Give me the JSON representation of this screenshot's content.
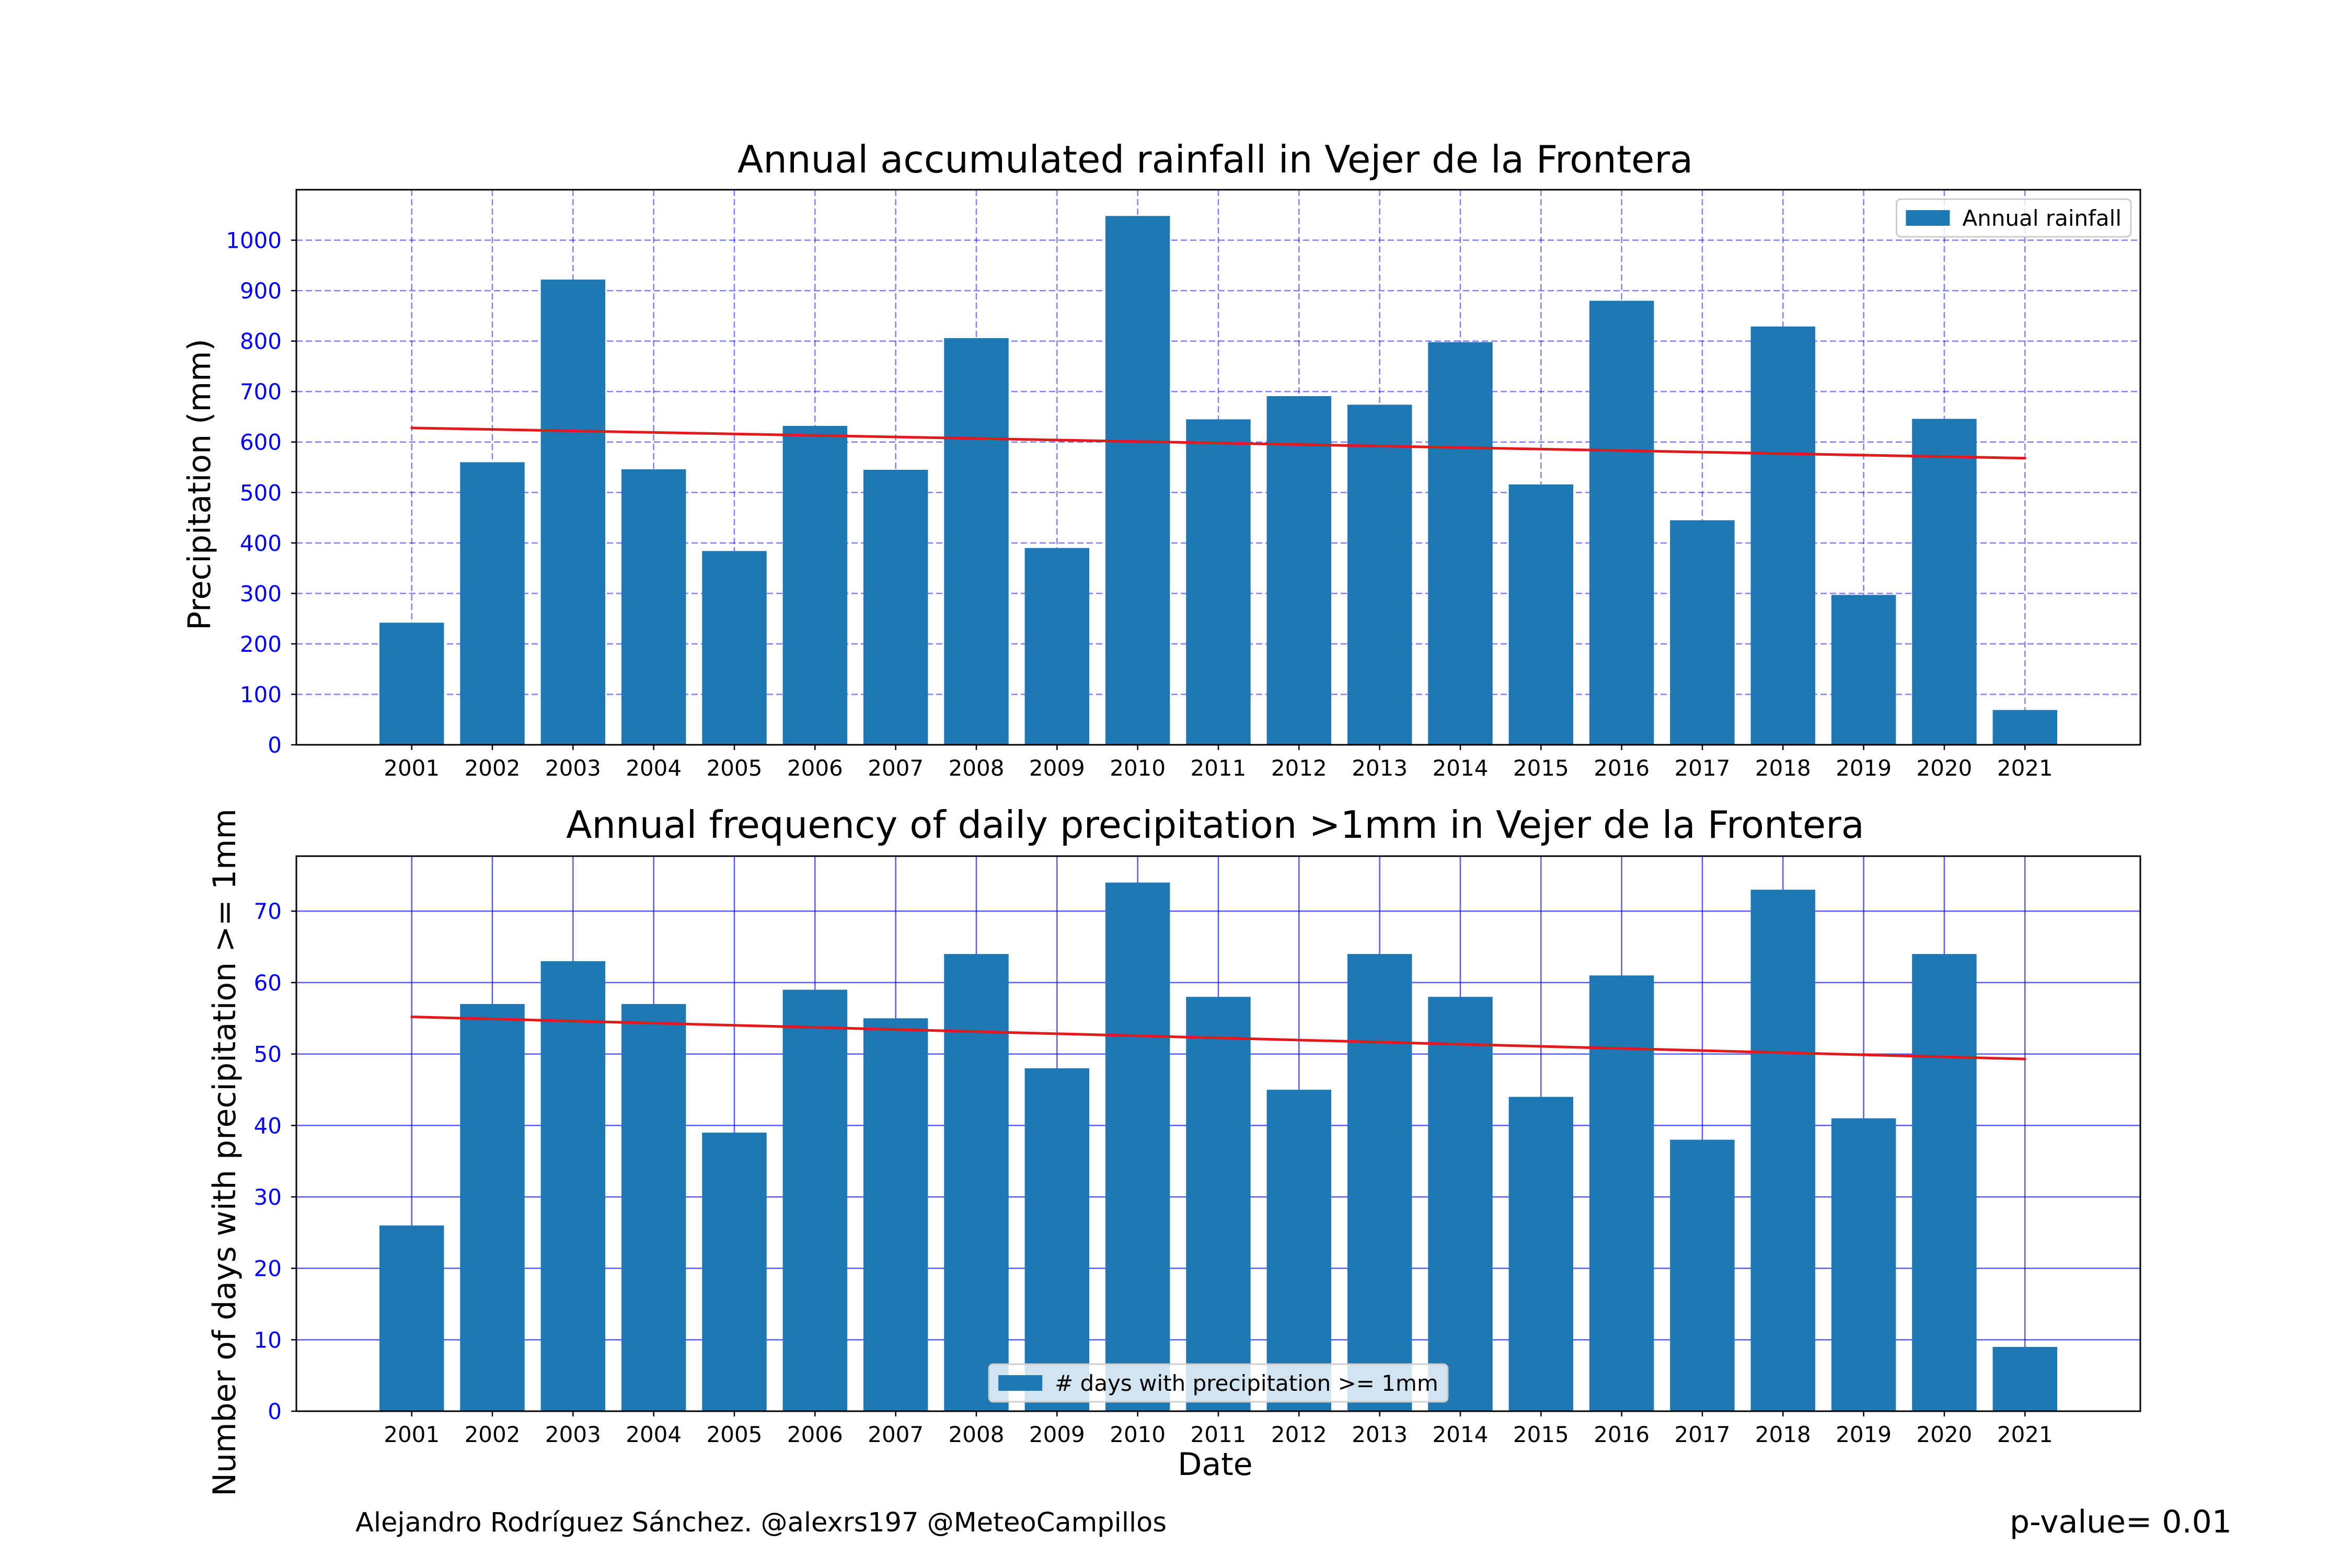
{
  "footer": {
    "credit": "Alejandro Rodríguez Sánchez. @alexrs197 @MeteoCampillos",
    "p_value": "p-value= 0.01"
  },
  "colors": {
    "bar": "#1f77b4",
    "trend": "#e31a1c",
    "grid": "#0000ff",
    "ytick": "#0000ff"
  },
  "chart_data": [
    {
      "type": "bar",
      "title": "Annual accumulated rainfall in Vejer de la Frontera",
      "xlabel": "",
      "ylabel": "Precipitation (mm)",
      "categories": [
        "2001",
        "2002",
        "2003",
        "2004",
        "2005",
        "2006",
        "2007",
        "2008",
        "2009",
        "2010",
        "2011",
        "2012",
        "2013",
        "2014",
        "2015",
        "2016",
        "2017",
        "2018",
        "2019",
        "2020",
        "2021"
      ],
      "series": [
        {
          "name": "Annual rainfall",
          "values": [
            242,
            560,
            922,
            546,
            384,
            632,
            545,
            806,
            390,
            1048,
            645,
            691,
            674,
            798,
            516,
            880,
            445,
            829,
            297,
            646,
            69
          ]
        }
      ],
      "trend": {
        "start": 628,
        "end": 568
      },
      "ylim": [
        0,
        1100
      ],
      "yticks": [
        0,
        100,
        200,
        300,
        400,
        500,
        600,
        700,
        800,
        900,
        1000
      ],
      "grid": "dashed",
      "legend": "top-right"
    },
    {
      "type": "bar",
      "title": "Annual frequency of daily precipitation >1mm in Vejer de la Frontera",
      "xlabel": "Date",
      "ylabel": "Number of days with precipitation >= 1mm",
      "categories": [
        "2001",
        "2002",
        "2003",
        "2004",
        "2005",
        "2006",
        "2007",
        "2008",
        "2009",
        "2010",
        "2011",
        "2012",
        "2013",
        "2014",
        "2015",
        "2016",
        "2017",
        "2018",
        "2019",
        "2020",
        "2021"
      ],
      "series": [
        {
          "name": "# days with precipitation >= 1mm",
          "values": [
            26,
            57,
            63,
            57,
            39,
            59,
            55,
            64,
            48,
            74,
            58,
            45,
            64,
            58,
            44,
            61,
            38,
            73,
            41,
            64,
            9
          ]
        }
      ],
      "trend": {
        "start": 55.2,
        "end": 49.3
      },
      "ylim": [
        0,
        77.7
      ],
      "yticks": [
        0,
        10,
        20,
        30,
        40,
        50,
        60,
        70
      ],
      "grid": "solid",
      "legend": "bottom-center"
    }
  ]
}
